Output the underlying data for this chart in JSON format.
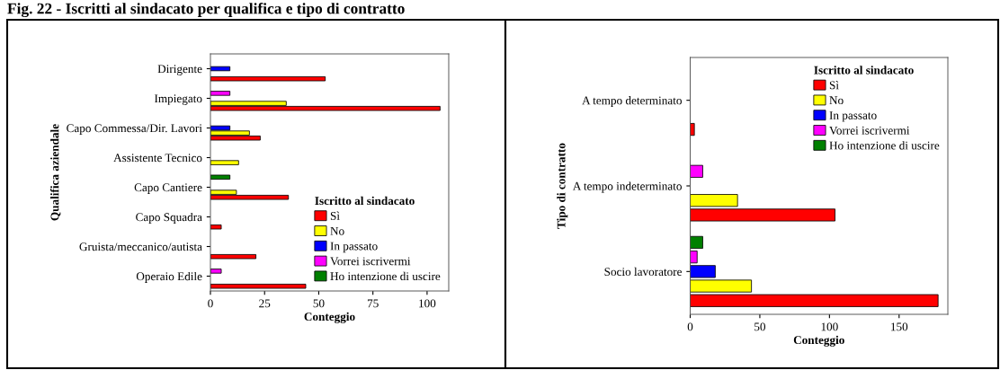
{
  "chart_data": [
    {
      "type": "bar",
      "orientation": "horizontal",
      "title": "Fig. 22 - Iscritti al sindacato per qualifica e tipo di contratto",
      "xlabel": "Conteggio",
      "ylabel": "Qualifica aziendale",
      "legend_title": "Iscritto al sindacato",
      "legend": "bottom right",
      "grid": false,
      "categories": [
        "Dirigente",
        "Impiegato",
        "Capo Commessa/Dir. Lavori",
        "Assistente Tecnico",
        "Capo Cantiere",
        "Capo Squadra",
        "Gruista/meccanico/autista",
        "Operaio Edile"
      ],
      "xlim": [
        0,
        110
      ],
      "xticks": [
        0,
        25,
        50,
        75,
        100
      ],
      "series": [
        {
          "name": "Sì",
          "color": "#ff0000",
          "values": [
            53,
            106,
            23,
            null,
            36,
            5,
            21,
            44
          ]
        },
        {
          "name": "No",
          "color": "#ffff00",
          "values": [
            null,
            35,
            18,
            13,
            12,
            null,
            null,
            null
          ]
        },
        {
          "name": "In passato",
          "color": "#0000ff",
          "values": [
            9,
            null,
            9,
            null,
            null,
            null,
            null,
            null
          ]
        },
        {
          "name": "Vorrei iscrivermi",
          "color": "#ff00ff",
          "values": [
            null,
            9,
            null,
            null,
            null,
            null,
            null,
            5
          ]
        },
        {
          "name": "Ho intenzione di uscire",
          "color": "#008000",
          "values": [
            null,
            null,
            null,
            null,
            9,
            null,
            null,
            null
          ]
        }
      ]
    },
    {
      "type": "bar",
      "orientation": "horizontal",
      "xlabel": "Conteggio",
      "ylabel": "Tipo di contratto",
      "legend_title": "Iscritto al sindacato",
      "legend": "top right",
      "grid": false,
      "categories": [
        "A tempo determinato",
        "A tempo indeterminato",
        "Socio lavoratore"
      ],
      "xlim": [
        0,
        185
      ],
      "xticks": [
        0,
        50,
        100,
        150
      ],
      "series": [
        {
          "name": "Sì",
          "color": "#ff0000",
          "values": [
            3,
            104,
            178
          ]
        },
        {
          "name": "No",
          "color": "#ffff00",
          "values": [
            null,
            34,
            44
          ]
        },
        {
          "name": "In passato",
          "color": "#0000ff",
          "values": [
            null,
            null,
            18
          ]
        },
        {
          "name": "Vorrei iscrivermi",
          "color": "#ff00ff",
          "values": [
            null,
            9,
            5
          ]
        },
        {
          "name": "Ho intenzione di uscire",
          "color": "#008000",
          "values": [
            null,
            null,
            9
          ]
        }
      ]
    }
  ]
}
